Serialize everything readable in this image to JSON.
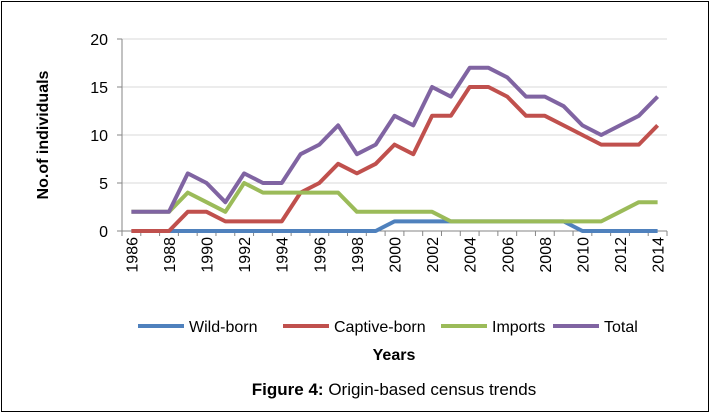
{
  "chart_data": {
    "type": "line",
    "caption": {
      "label": "Figure 4:",
      "text": "Origin-based census trends"
    },
    "x_label": "Years",
    "y_label": "No.of individuals",
    "categories": [
      "1986",
      null,
      "1988",
      null,
      "1990",
      null,
      "1992",
      null,
      "1994",
      null,
      "1996",
      null,
      "1998",
      null,
      "2000",
      null,
      "2002",
      null,
      "2004",
      null,
      "2006",
      null,
      "2008",
      null,
      "2010",
      null,
      "2012",
      null,
      "2014"
    ],
    "series": [
      {
        "name": "Wild-born",
        "color": "#4f81bd",
        "values": [
          0,
          0,
          0,
          0,
          0,
          0,
          0,
          0,
          0,
          0,
          0,
          0,
          0,
          0,
          1,
          1,
          1,
          1,
          1,
          1,
          1,
          1,
          1,
          1,
          0,
          0,
          0,
          0,
          0
        ]
      },
      {
        "name": "Captive-born",
        "color": "#c0504d",
        "values": [
          0,
          0,
          0,
          2,
          2,
          1,
          1,
          1,
          1,
          4,
          5,
          7,
          6,
          7,
          9,
          8,
          12,
          12,
          15,
          15,
          14,
          12,
          12,
          11,
          10,
          9,
          9,
          9,
          11
        ]
      },
      {
        "name": "Imports",
        "color": "#9bbb59",
        "values": [
          2,
          2,
          2,
          4,
          3,
          2,
          5,
          4,
          4,
          4,
          4,
          4,
          2,
          2,
          2,
          2,
          2,
          1,
          1,
          1,
          1,
          1,
          1,
          1,
          1,
          1,
          2,
          3,
          3
        ]
      },
      {
        "name": "Total",
        "color": "#8064a2",
        "values": [
          2,
          2,
          2,
          6,
          5,
          3,
          6,
          5,
          5,
          8,
          9,
          11,
          8,
          9,
          12,
          11,
          15,
          14,
          17,
          17,
          16,
          14,
          14,
          13,
          11,
          10,
          11,
          12,
          14
        ]
      }
    ],
    "ylim": [
      0,
      20
    ],
    "yticks": [
      0,
      5,
      10,
      15,
      20
    ],
    "grid": true,
    "legend": "bottom"
  }
}
